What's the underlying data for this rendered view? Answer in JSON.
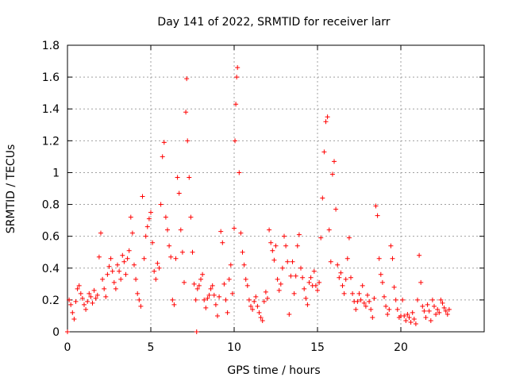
{
  "chart_data": {
    "type": "scatter",
    "title": "Day 141 of 2022, SRMTID for receiver larr",
    "xlabel": "GPS time / hours",
    "ylabel": "SRMTID / TECUs",
    "xlim": [
      0,
      25
    ],
    "ylim": [
      0,
      1.8
    ],
    "xticks": [
      0,
      5,
      10,
      15,
      20
    ],
    "xtick_labels": [
      "0",
      "5",
      "10",
      "15",
      "20"
    ],
    "yticks": [
      0,
      0.2,
      0.4,
      0.6,
      0.8,
      1,
      1.2,
      1.4,
      1.6,
      1.8
    ],
    "ytick_labels": [
      "0",
      "0.2",
      "0.4",
      "0.6",
      "0.8",
      "1",
      "1.2",
      "1.4",
      "1.6",
      "1.8"
    ],
    "grid": true,
    "marker": "plus",
    "series": [
      {
        "name": "larr",
        "color": "#ff0000",
        "points": [
          [
            0.0,
            0.0
          ],
          [
            0.1,
            0.2
          ],
          [
            0.2,
            0.17
          ],
          [
            0.3,
            0.12
          ],
          [
            0.4,
            0.08
          ],
          [
            0.5,
            0.19
          ],
          [
            0.6,
            0.27
          ],
          [
            0.7,
            0.29
          ],
          [
            0.8,
            0.24
          ],
          [
            0.9,
            0.21
          ],
          [
            1.0,
            0.17
          ],
          [
            1.1,
            0.14
          ],
          [
            1.2,
            0.19
          ],
          [
            1.3,
            0.24
          ],
          [
            1.4,
            0.22
          ],
          [
            1.5,
            0.18
          ],
          [
            1.6,
            0.26
          ],
          [
            1.7,
            0.21
          ],
          [
            1.8,
            0.23
          ],
          [
            1.9,
            0.47
          ],
          [
            2.0,
            0.62
          ],
          [
            2.1,
            0.33
          ],
          [
            2.2,
            0.27
          ],
          [
            2.3,
            0.22
          ],
          [
            2.4,
            0.36
          ],
          [
            2.5,
            0.41
          ],
          [
            2.6,
            0.46
          ],
          [
            2.7,
            0.38
          ],
          [
            2.8,
            0.31
          ],
          [
            2.9,
            0.27
          ],
          [
            3.0,
            0.42
          ],
          [
            3.1,
            0.38
          ],
          [
            3.2,
            0.33
          ],
          [
            3.3,
            0.48
          ],
          [
            3.4,
            0.44
          ],
          [
            3.5,
            0.36
          ],
          [
            3.6,
            0.46
          ],
          [
            3.7,
            0.51
          ],
          [
            3.8,
            0.72
          ],
          [
            3.9,
            0.62
          ],
          [
            4.0,
            0.42
          ],
          [
            4.1,
            0.33
          ],
          [
            4.2,
            0.24
          ],
          [
            4.3,
            0.2
          ],
          [
            4.4,
            0.16
          ],
          [
            4.5,
            0.85
          ],
          [
            4.6,
            0.46
          ],
          [
            4.7,
            0.6
          ],
          [
            4.8,
            0.66
          ],
          [
            4.9,
            0.71
          ],
          [
            5.0,
            0.75
          ],
          [
            5.1,
            0.56
          ],
          [
            5.2,
            0.38
          ],
          [
            5.3,
            0.33
          ],
          [
            5.4,
            0.43
          ],
          [
            5.5,
            0.4
          ],
          [
            5.6,
            0.8
          ],
          [
            5.7,
            1.1
          ],
          [
            5.8,
            1.19
          ],
          [
            5.9,
            0.72
          ],
          [
            6.0,
            0.64
          ],
          [
            6.1,
            0.54
          ],
          [
            6.2,
            0.47
          ],
          [
            6.3,
            0.2
          ],
          [
            6.4,
            0.17
          ],
          [
            6.5,
            0.46
          ],
          [
            6.6,
            0.97
          ],
          [
            6.7,
            0.87
          ],
          [
            6.8,
            0.64
          ],
          [
            6.9,
            0.5
          ],
          [
            7.0,
            0.31
          ],
          [
            7.1,
            1.38
          ],
          [
            7.15,
            1.59
          ],
          [
            7.2,
            1.2
          ],
          [
            7.3,
            0.97
          ],
          [
            7.4,
            0.72
          ],
          [
            7.5,
            0.5
          ],
          [
            7.6,
            0.3
          ],
          [
            7.7,
            0.2
          ],
          [
            7.75,
            0.0
          ],
          [
            7.8,
            0.27
          ],
          [
            7.9,
            0.29
          ],
          [
            8.0,
            0.33
          ],
          [
            8.1,
            0.36
          ],
          [
            8.2,
            0.2
          ],
          [
            8.3,
            0.15
          ],
          [
            8.4,
            0.21
          ],
          [
            8.5,
            0.23
          ],
          [
            8.6,
            0.27
          ],
          [
            8.7,
            0.29
          ],
          [
            8.8,
            0.23
          ],
          [
            8.9,
            0.17
          ],
          [
            9.0,
            0.1
          ],
          [
            9.1,
            0.22
          ],
          [
            9.2,
            0.63
          ],
          [
            9.3,
            0.56
          ],
          [
            9.4,
            0.3
          ],
          [
            9.5,
            0.2
          ],
          [
            9.6,
            0.12
          ],
          [
            9.7,
            0.33
          ],
          [
            9.8,
            0.42
          ],
          [
            9.9,
            0.24
          ],
          [
            10.0,
            0.65
          ],
          [
            10.05,
            1.2
          ],
          [
            10.1,
            1.43
          ],
          [
            10.15,
            1.6
          ],
          [
            10.2,
            1.66
          ],
          [
            10.3,
            1.0
          ],
          [
            10.4,
            0.62
          ],
          [
            10.5,
            0.5
          ],
          [
            10.6,
            0.42
          ],
          [
            10.7,
            0.33
          ],
          [
            10.8,
            0.29
          ],
          [
            10.9,
            0.2
          ],
          [
            11.0,
            0.16
          ],
          [
            11.1,
            0.14
          ],
          [
            11.2,
            0.19
          ],
          [
            11.3,
            0.22
          ],
          [
            11.4,
            0.16
          ],
          [
            11.5,
            0.12
          ],
          [
            11.6,
            0.09
          ],
          [
            11.7,
            0.07
          ],
          [
            11.8,
            0.19
          ],
          [
            11.9,
            0.25
          ],
          [
            12.0,
            0.21
          ],
          [
            12.1,
            0.64
          ],
          [
            12.2,
            0.56
          ],
          [
            12.3,
            0.51
          ],
          [
            12.4,
            0.45
          ],
          [
            12.5,
            0.54
          ],
          [
            12.6,
            0.33
          ],
          [
            12.7,
            0.26
          ],
          [
            12.8,
            0.3
          ],
          [
            12.9,
            0.4
          ],
          [
            13.0,
            0.6
          ],
          [
            13.1,
            0.54
          ],
          [
            13.2,
            0.44
          ],
          [
            13.3,
            0.11
          ],
          [
            13.4,
            0.35
          ],
          [
            13.5,
            0.44
          ],
          [
            13.6,
            0.24
          ],
          [
            13.7,
            0.35
          ],
          [
            13.8,
            0.54
          ],
          [
            13.9,
            0.61
          ],
          [
            14.0,
            0.4
          ],
          [
            14.1,
            0.34
          ],
          [
            14.2,
            0.27
          ],
          [
            14.3,
            0.21
          ],
          [
            14.4,
            0.17
          ],
          [
            14.5,
            0.31
          ],
          [
            14.6,
            0.34
          ],
          [
            14.7,
            0.29
          ],
          [
            14.8,
            0.38
          ],
          [
            14.9,
            0.29
          ],
          [
            15.0,
            0.26
          ],
          [
            15.1,
            0.31
          ],
          [
            15.2,
            0.59
          ],
          [
            15.3,
            0.84
          ],
          [
            15.4,
            1.13
          ],
          [
            15.5,
            1.32
          ],
          [
            15.6,
            1.35
          ],
          [
            15.7,
            0.64
          ],
          [
            15.8,
            0.44
          ],
          [
            15.9,
            0.99
          ],
          [
            16.0,
            1.07
          ],
          [
            16.1,
            0.77
          ],
          [
            16.2,
            0.42
          ],
          [
            16.3,
            0.34
          ],
          [
            16.4,
            0.37
          ],
          [
            16.5,
            0.29
          ],
          [
            16.6,
            0.24
          ],
          [
            16.7,
            0.33
          ],
          [
            16.8,
            0.46
          ],
          [
            16.9,
            0.59
          ],
          [
            17.0,
            0.34
          ],
          [
            17.1,
            0.24
          ],
          [
            17.2,
            0.19
          ],
          [
            17.3,
            0.14
          ],
          [
            17.4,
            0.19
          ],
          [
            17.5,
            0.24
          ],
          [
            17.6,
            0.2
          ],
          [
            17.7,
            0.29
          ],
          [
            17.8,
            0.18
          ],
          [
            17.9,
            0.16
          ],
          [
            18.0,
            0.23
          ],
          [
            18.1,
            0.19
          ],
          [
            18.2,
            0.14
          ],
          [
            18.3,
            0.09
          ],
          [
            18.4,
            0.21
          ],
          [
            18.5,
            0.79
          ],
          [
            18.6,
            0.73
          ],
          [
            18.7,
            0.46
          ],
          [
            18.8,
            0.36
          ],
          [
            18.9,
            0.31
          ],
          [
            19.0,
            0.22
          ],
          [
            19.1,
            0.16
          ],
          [
            19.2,
            0.11
          ],
          [
            19.3,
            0.14
          ],
          [
            19.4,
            0.54
          ],
          [
            19.5,
            0.46
          ],
          [
            19.6,
            0.28
          ],
          [
            19.7,
            0.2
          ],
          [
            19.8,
            0.14
          ],
          [
            19.9,
            0.09
          ],
          [
            20.0,
            0.1
          ],
          [
            20.1,
            0.2
          ],
          [
            20.2,
            0.1
          ],
          [
            20.3,
            0.07
          ],
          [
            20.4,
            0.11
          ],
          [
            20.5,
            0.09
          ],
          [
            20.6,
            0.06
          ],
          [
            20.7,
            0.12
          ],
          [
            20.8,
            0.08
          ],
          [
            20.9,
            0.05
          ],
          [
            21.0,
            0.2
          ],
          [
            21.1,
            0.48
          ],
          [
            21.2,
            0.31
          ],
          [
            21.3,
            0.16
          ],
          [
            21.4,
            0.13
          ],
          [
            21.5,
            0.09
          ],
          [
            21.6,
            0.17
          ],
          [
            21.7,
            0.13
          ],
          [
            21.8,
            0.07
          ],
          [
            21.9,
            0.2
          ],
          [
            22.0,
            0.16
          ],
          [
            22.1,
            0.11
          ],
          [
            22.2,
            0.14
          ],
          [
            22.3,
            0.12
          ],
          [
            22.4,
            0.2
          ],
          [
            22.5,
            0.18
          ],
          [
            22.6,
            0.15
          ],
          [
            22.7,
            0.13
          ],
          [
            22.8,
            0.11
          ],
          [
            22.9,
            0.14
          ]
        ]
      }
    ]
  }
}
